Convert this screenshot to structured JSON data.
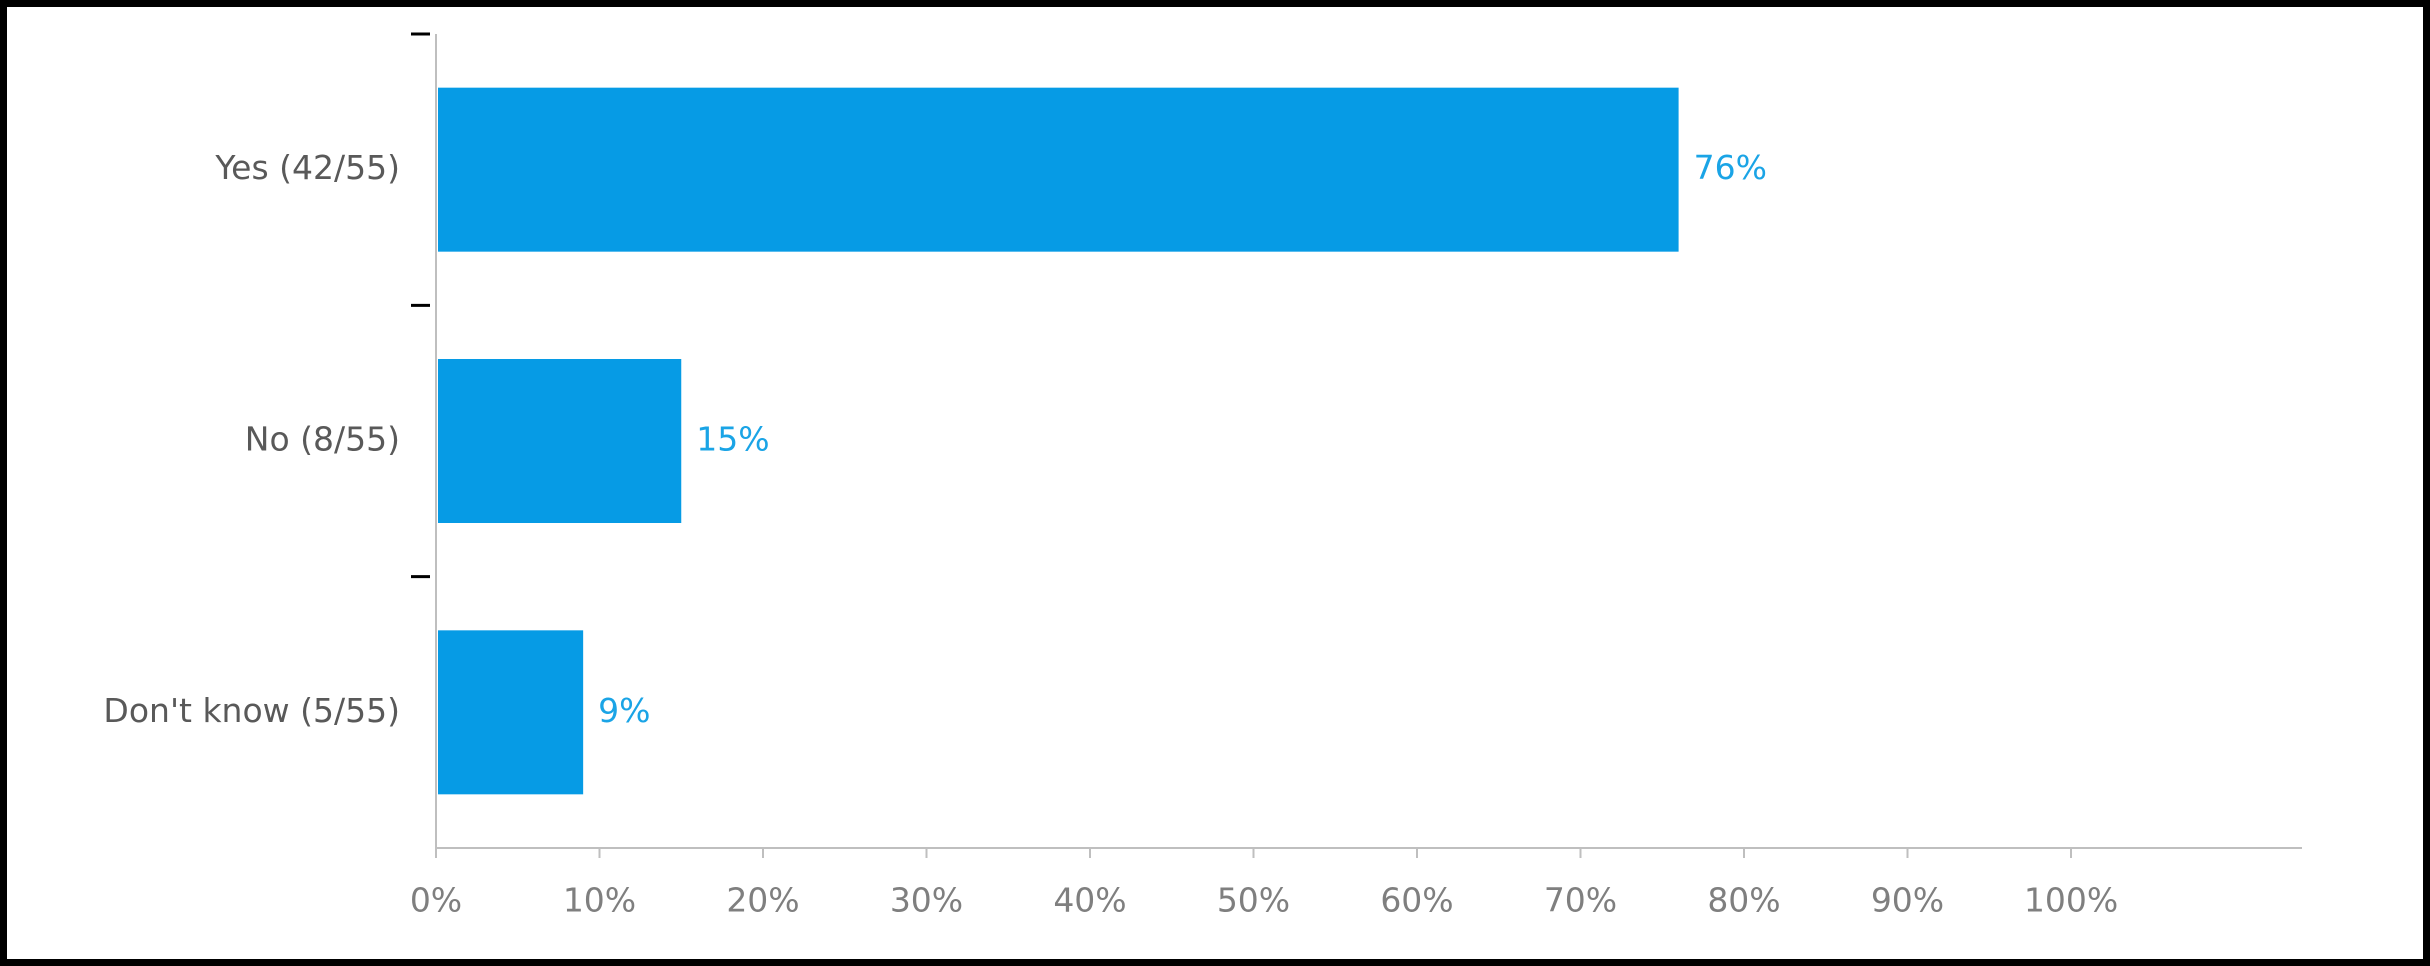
{
  "chart_data": {
    "type": "bar",
    "orientation": "horizontal",
    "categories": [
      "Yes (42/55)",
      "No (8/55)",
      "Don't know (5/55)"
    ],
    "values": [
      76,
      15,
      9
    ],
    "value_labels": [
      "76%",
      "15%",
      "9%"
    ],
    "xlim": [
      0,
      114
    ],
    "x_ticks": [
      0,
      10,
      20,
      30,
      40,
      50,
      60,
      70,
      80,
      90,
      100
    ],
    "x_tick_labels": [
      "0%",
      "10%",
      "20%",
      "30%",
      "40%",
      "50%",
      "60%",
      "70%",
      "80%",
      "90%",
      "100%"
    ],
    "grid": false,
    "legend": "none",
    "bar_color": "#069be5",
    "label_color": "#1aa4e6"
  }
}
